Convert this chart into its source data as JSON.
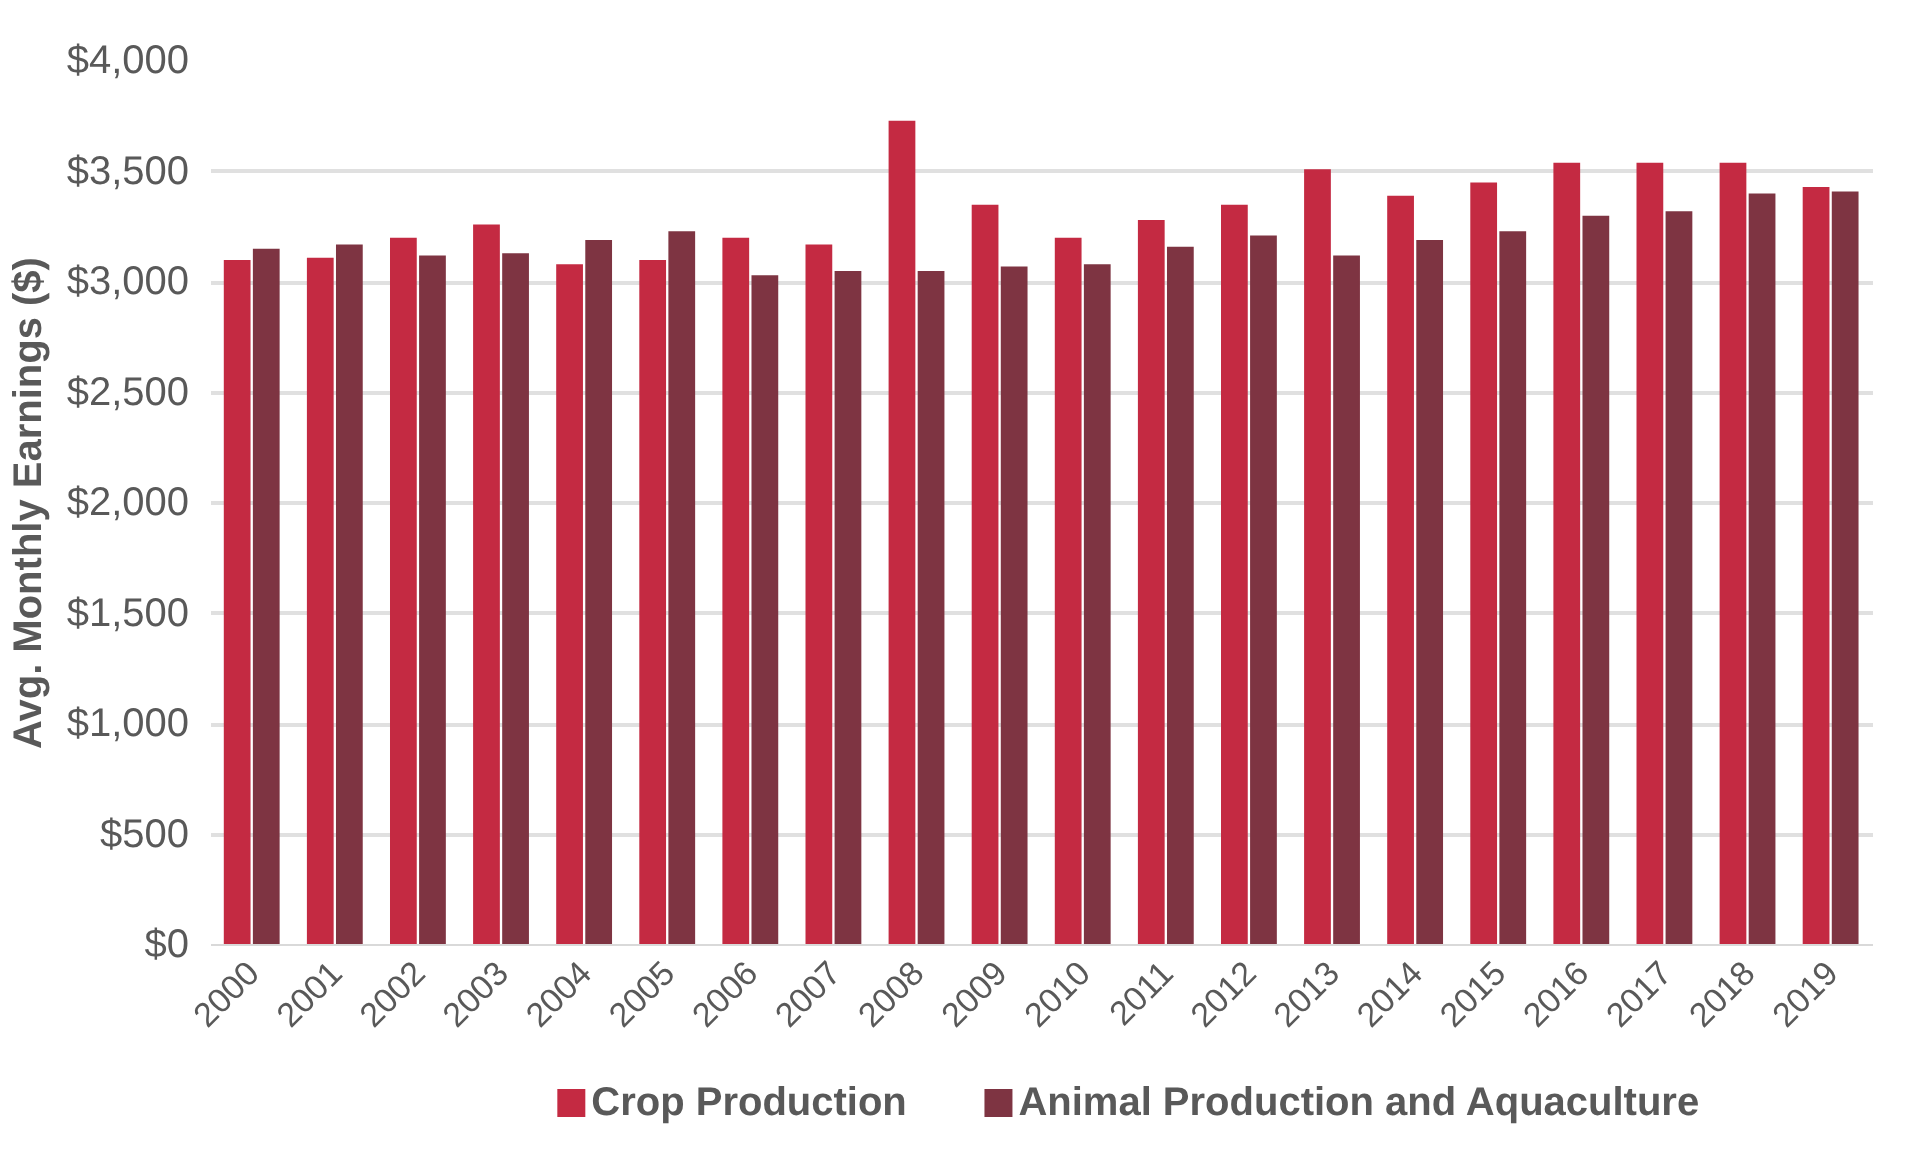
{
  "chart_data": {
    "type": "bar",
    "ylabel": "Avg. Monthly Earnings ($)",
    "categories": [
      "2000",
      "2001",
      "2002",
      "2003",
      "2004",
      "2005",
      "2006",
      "2007",
      "2008",
      "2009",
      "2010",
      "2011",
      "2012",
      "2013",
      "2014",
      "2015",
      "2016",
      "2017",
      "2018",
      "2019"
    ],
    "series": [
      {
        "name": "Crop Production",
        "color": "#c42a42",
        "values": [
          3100,
          3110,
          3200,
          3260,
          3080,
          3100,
          3200,
          3170,
          3730,
          3350,
          3200,
          3280,
          3350,
          3510,
          3390,
          3450,
          3540,
          3540,
          3540,
          3430
        ]
      },
      {
        "name": "Animal Production and Aquaculture",
        "color": "#7e3442",
        "values": [
          3150,
          3170,
          3120,
          3130,
          3190,
          3230,
          3030,
          3050,
          3050,
          3070,
          3080,
          3160,
          3210,
          3120,
          3190,
          3230,
          3300,
          3320,
          3400,
          3410
        ]
      }
    ],
    "ylim": [
      0,
      4000
    ],
    "yticks": [
      {
        "value": 0,
        "label": "$0"
      },
      {
        "value": 500,
        "label": "$500"
      },
      {
        "value": 1000,
        "label": "$1,000"
      },
      {
        "value": 1500,
        "label": "$1,500"
      },
      {
        "value": 2000,
        "label": "$2,000"
      },
      {
        "value": 2500,
        "label": "$2,500"
      },
      {
        "value": 3000,
        "label": "$3,000"
      },
      {
        "value": 3500,
        "label": "$3,500"
      },
      {
        "value": 4000,
        "label": "$4,000"
      }
    ],
    "grid": "y",
    "legend": "bottom"
  }
}
